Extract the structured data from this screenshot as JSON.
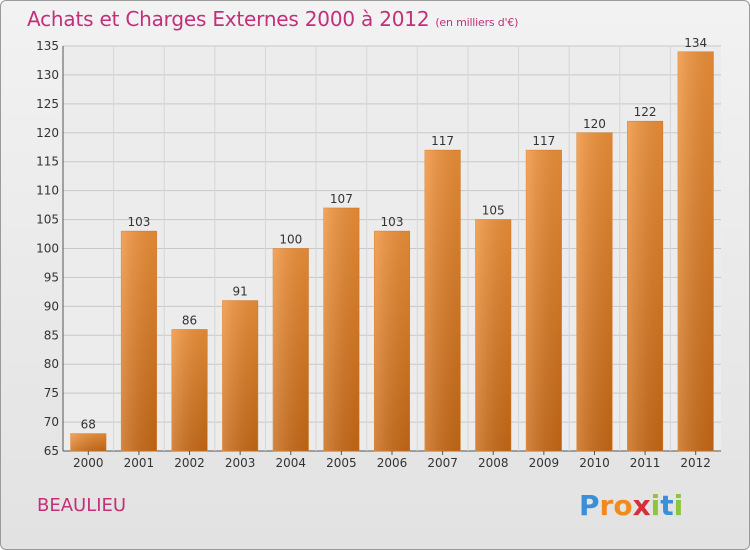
{
  "chart_data": {
    "type": "bar",
    "title": "Achats et Charges Externes 2000 à 2012",
    "subtitle": "(en milliers d'€)",
    "categories": [
      "2000",
      "2001",
      "2002",
      "2003",
      "2004",
      "2005",
      "2006",
      "2007",
      "2008",
      "2009",
      "2010",
      "2011",
      "2012"
    ],
    "values": [
      68,
      103,
      86,
      91,
      100,
      107,
      103,
      117,
      105,
      117,
      120,
      122,
      134
    ],
    "xlabel": "",
    "ylabel": "",
    "ylim": [
      65,
      135
    ],
    "yticks": [
      65,
      70,
      75,
      80,
      85,
      90,
      95,
      100,
      105,
      110,
      115,
      120,
      125,
      130,
      135
    ],
    "grid": true,
    "bar_color": "#f0923a",
    "bar_color_dark": "#c96a16"
  },
  "footer": {
    "city": "BEAULIEU",
    "logo_letters": [
      "P",
      "r",
      "o",
      "x",
      "i",
      "t",
      "i"
    ],
    "logo_colors": [
      "#3a8fd6",
      "#f08a1e",
      "#f08a1e",
      "#d62f3a",
      "#8cc63f",
      "#3a8fd6",
      "#8cc63f"
    ]
  }
}
